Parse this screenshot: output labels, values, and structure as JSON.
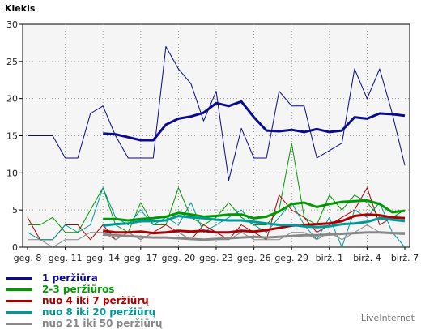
{
  "chart_data": {
    "type": "line",
    "ylabel": "Kiekis",
    "ylim": [
      0,
      30
    ],
    "yticks": [
      0,
      5,
      10,
      15,
      20,
      25,
      30
    ],
    "grid": true,
    "legend_position": "bottom-left",
    "x_tick_labels": [
      "geg. 8",
      "geg. 11",
      "geg. 14",
      "geg. 17",
      "geg. 20",
      "geg. 23",
      "geg. 26",
      "geg. 29",
      "birž. 1",
      "birž. 4",
      "birž. 7"
    ],
    "series": [
      {
        "name": "1 peržiūra",
        "color": "#0a0a8c",
        "kind": "daily",
        "values": [
          15,
          15,
          15,
          12,
          12,
          18,
          19,
          15,
          12,
          12,
          12,
          27,
          24,
          22,
          17,
          21,
          9,
          16,
          12,
          12,
          21,
          19,
          19,
          12,
          13,
          14,
          24,
          20,
          24,
          18,
          11
        ]
      },
      {
        "name": "1 peržiūra",
        "color": "#0a0a8c",
        "kind": "average",
        "values": [
          null,
          null,
          null,
          null,
          null,
          null,
          15.3,
          15.2,
          14.8,
          14.4,
          14.4,
          16.5,
          17.3,
          17.6,
          18.1,
          19.4,
          19,
          19.6,
          17.5,
          15.7,
          15.6,
          15.8,
          15.5,
          15.9,
          15.5,
          15.7,
          17.5,
          17.3,
          18,
          17.9,
          17.7
        ]
      },
      {
        "name": "2-3 peržiūros",
        "color": "#009900",
        "kind": "daily",
        "values": [
          3,
          3,
          4,
          2,
          2,
          5,
          8,
          3,
          2,
          6,
          3,
          3,
          8,
          4,
          3,
          4,
          6,
          4,
          3,
          3,
          5,
          14,
          4,
          3,
          7,
          5,
          7,
          6,
          4,
          4,
          5
        ]
      },
      {
        "name": "2-3 peržiūros",
        "color": "#009900",
        "kind": "average",
        "values": [
          null,
          null,
          null,
          null,
          null,
          null,
          3.8,
          3.8,
          3.6,
          3.8,
          3.9,
          4.1,
          4.6,
          4.4,
          4.1,
          4.2,
          4.4,
          4.4,
          3.9,
          4.1,
          4.8,
          5.8,
          6.0,
          5.4,
          5.8,
          6.1,
          6.2,
          6.3,
          5.8,
          4.7,
          4.9
        ]
      },
      {
        "name": "nuo 4 iki 7 peržiūrų",
        "color": "#aa0000",
        "kind": "daily",
        "values": [
          4,
          1,
          1,
          3,
          3,
          1,
          3,
          1,
          2,
          1,
          2,
          3,
          2,
          1,
          3,
          2,
          1,
          3,
          2,
          1,
          7,
          5,
          4,
          2,
          3,
          4,
          5,
          8,
          3,
          4,
          4
        ]
      },
      {
        "name": "nuo 4 iki 7 peržiūrų",
        "color": "#aa0000",
        "kind": "average",
        "values": [
          null,
          null,
          null,
          null,
          null,
          null,
          2.2,
          2.0,
          2.0,
          2.1,
          1.9,
          2.0,
          2.2,
          2.1,
          2.2,
          2.0,
          2.0,
          2.2,
          2.1,
          2.3,
          2.6,
          2.9,
          3.0,
          3.1,
          3.2,
          3.5,
          4.2,
          4.4,
          4.3,
          4.0,
          3.9
        ]
      },
      {
        "name": "nuo 8 iki 20 peržiūrų",
        "color": "#009999",
        "kind": "daily",
        "values": [
          2,
          1,
          1,
          3,
          2,
          3,
          8,
          4,
          3,
          5,
          3,
          4,
          3,
          6,
          2,
          3,
          4,
          5,
          3,
          2,
          4,
          6,
          3,
          1,
          4,
          0,
          5,
          4,
          6,
          2,
          0
        ]
      },
      {
        "name": "nuo 8 iki 20 peržiūrų",
        "color": "#009999",
        "kind": "average",
        "values": [
          null,
          null,
          null,
          null,
          null,
          null,
          2.9,
          3.1,
          3.2,
          3.5,
          3.5,
          3.6,
          4.2,
          4.0,
          3.9,
          3.7,
          3.6,
          3.6,
          3.4,
          3.2,
          3.0,
          3.0,
          2.8,
          2.7,
          2.8,
          3.1,
          3.2,
          3.4,
          3.9,
          3.7,
          3.5
        ]
      },
      {
        "name": "nuo 21 iki 50 peržiūrų",
        "color": "#888888",
        "kind": "daily",
        "values": [
          1,
          1,
          0,
          1,
          1,
          2,
          2,
          1,
          2,
          1,
          2,
          2,
          2,
          1,
          1,
          1,
          1,
          2,
          1,
          1,
          1,
          2,
          2,
          1,
          2,
          1,
          2,
          3,
          2,
          2,
          2
        ]
      },
      {
        "name": "nuo 21 iki 50 peržiūrų",
        "color": "#888888",
        "kind": "average",
        "values": [
          null,
          null,
          null,
          null,
          null,
          null,
          1.7,
          1.6,
          1.5,
          1.4,
          1.3,
          1.3,
          1.2,
          1.1,
          1.0,
          1.1,
          1.2,
          1.3,
          1.4,
          1.3,
          1.4,
          1.5,
          1.6,
          1.6,
          1.7,
          1.8,
          1.9,
          2.0,
          2.0,
          1.9,
          1.8
        ]
      }
    ]
  },
  "legend": {
    "items": [
      {
        "label": "1 peržiūra",
        "color": "#0a0a8c"
      },
      {
        "label": "2-3 peržiūros",
        "color": "#009900"
      },
      {
        "label": "nuo 4 iki 7 peržiūrų",
        "color": "#aa0000"
      },
      {
        "label": "nuo 8 iki 20 peržiūrų",
        "color": "#009999"
      },
      {
        "label": "nuo 21 iki 50 peržiūrų",
        "color": "#888888"
      }
    ]
  },
  "brand": "LiveInternet"
}
